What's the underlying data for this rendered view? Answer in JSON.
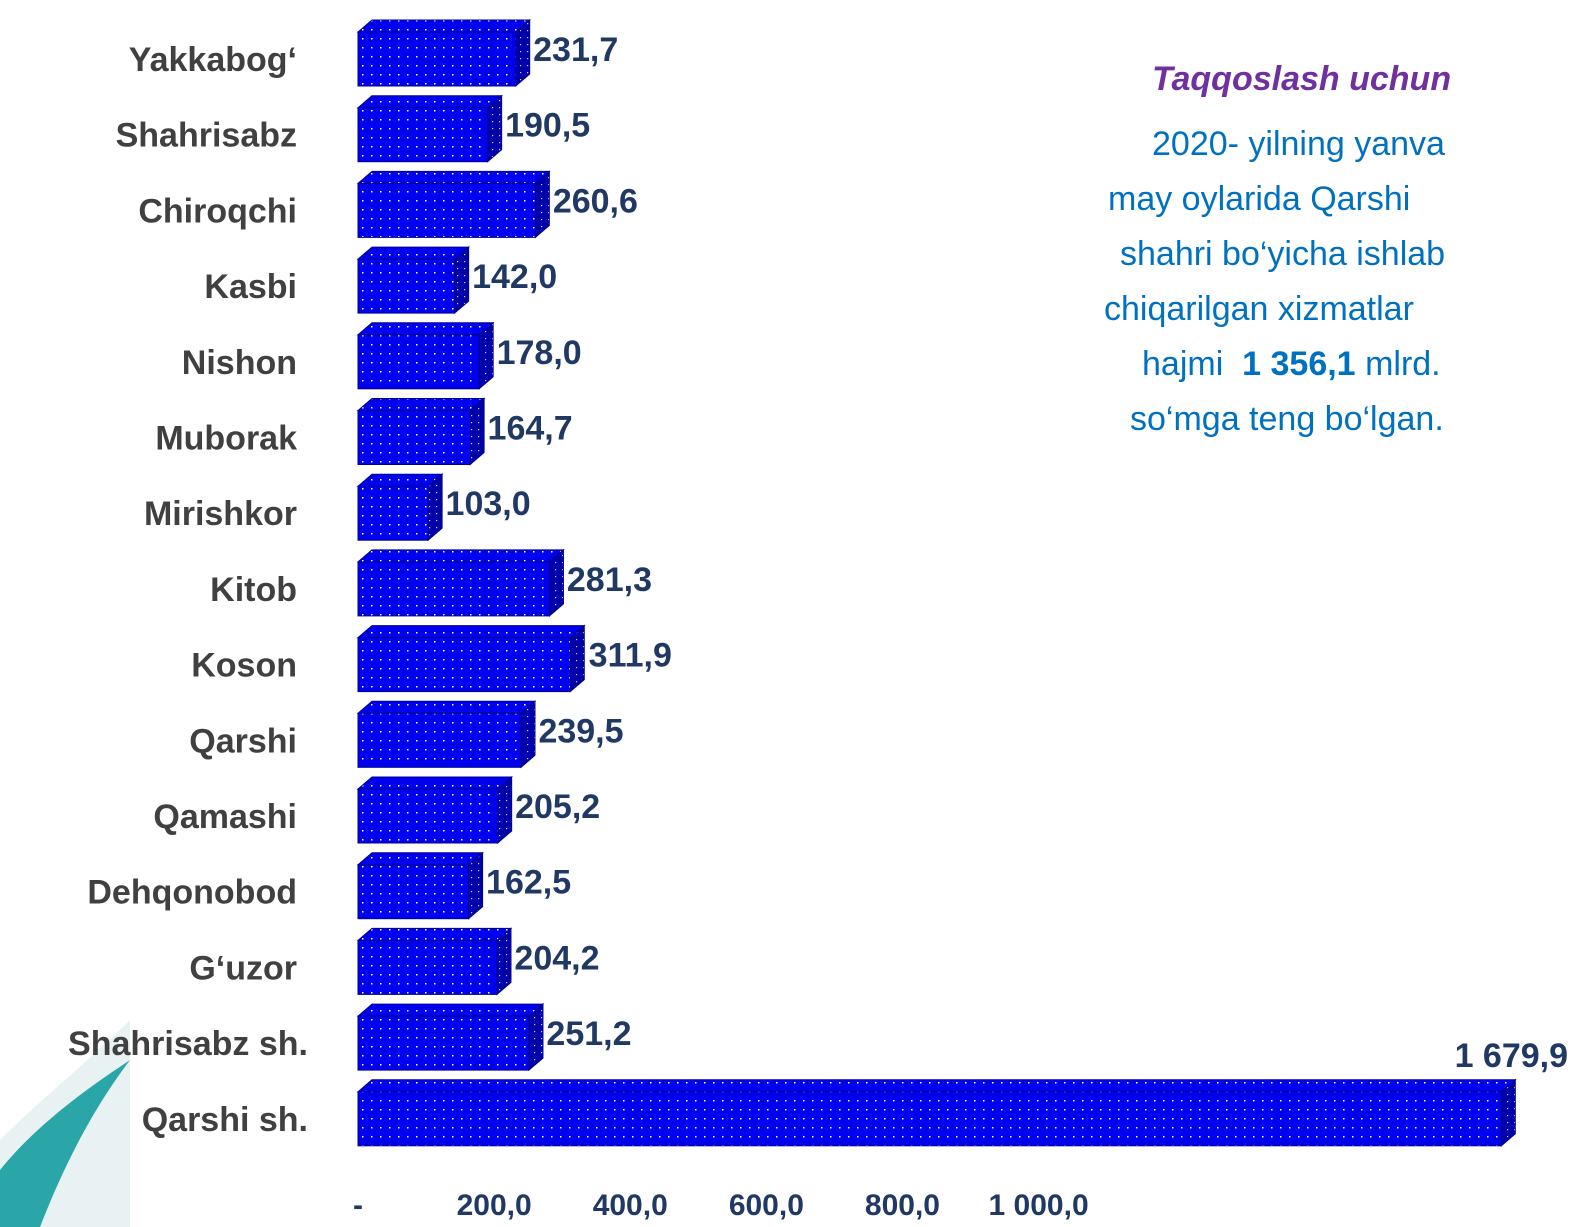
{
  "chart_data": {
    "type": "bar3d",
    "categories": [
      "Yakkabog‘",
      "Shahrisabz",
      "Chiroqchi",
      "Kasbi",
      "Nishon",
      "Muborak",
      "Mirishkor",
      "Kitob",
      "Koson",
      "Qarshi",
      "Qamashi",
      "Dehqonobod",
      "G‘uzor",
      "Shahrisabz sh.",
      "Qarshi sh."
    ],
    "values": [
      231.7,
      190.5,
      260.6,
      142.0,
      178.0,
      164.7,
      103.0,
      281.3,
      311.9,
      239.5,
      205.2,
      162.5,
      204.2,
      251.2,
      1679.9
    ],
    "value_labels": [
      "231,7",
      "190,5",
      "260,6",
      "142,0",
      "178,0",
      "164,7",
      "103,0",
      "281,3",
      "311,9",
      "239,5",
      "205,2",
      "162,5",
      "204,2",
      "251,2",
      "1 679,9"
    ],
    "color": "#0000ee",
    "xlim": [
      0,
      1700
    ],
    "xticks": [
      {
        "value": 0,
        "label": "-"
      },
      {
        "value": 200,
        "label": "200,0"
      },
      {
        "value": 400,
        "label": "400,0"
      },
      {
        "value": 600,
        "label": "600,0"
      },
      {
        "value": 800,
        "label": "800,0"
      },
      {
        "value": 1000,
        "label": "1 000,0"
      }
    ],
    "grid": false
  },
  "note": {
    "heading": "Taqqoslash uchun",
    "lines": [
      "2020- yilning  yanva",
      "may oylarida Qarshi",
      "shahri bo‘yicha ishlab",
      "chiqarilgan xizmatlar"
    ],
    "line5": {
      "before": "hajmi",
      "bold": "1 356,1",
      "after": "mlrd."
    },
    "last": "so‘mga teng bo‘lgan."
  }
}
